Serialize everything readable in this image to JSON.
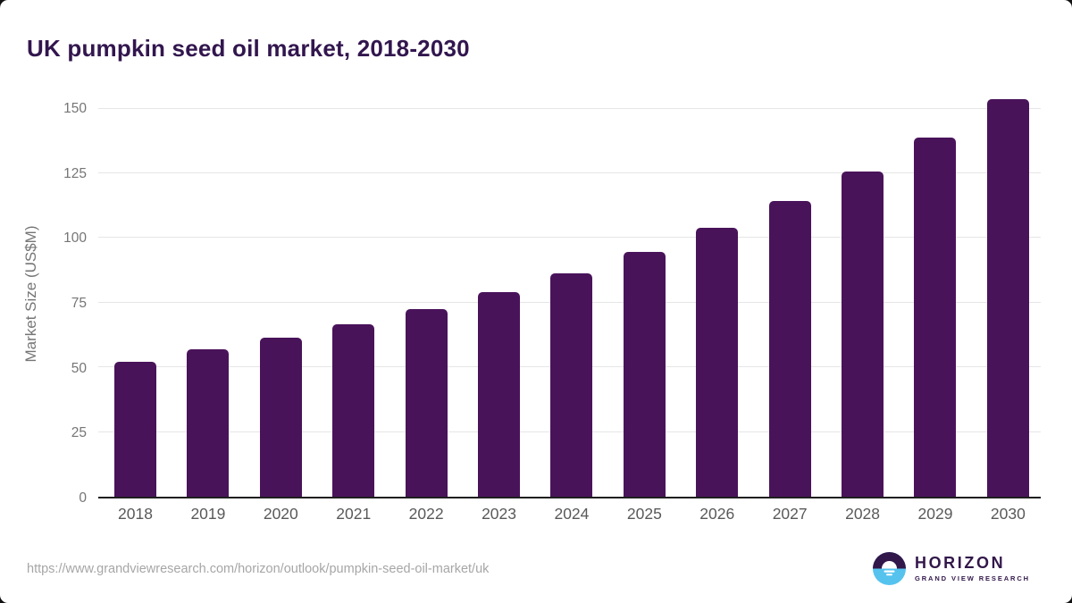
{
  "title": "UK pumpkin seed oil market, 2018-2030",
  "source_url": "https://www.grandviewresearch.com/horizon/outlook/pumpkin-seed-oil-market/uk",
  "logo": {
    "name": "HORIZON",
    "sub": "GRAND VIEW RESEARCH",
    "icon": "horizon-sunrise-icon",
    "purple": "#32174A",
    "blue": "#55C3EE"
  },
  "colors": {
    "bar": "#49135A",
    "title": "#32164E",
    "gridline": "#e6e6e6",
    "axis_line": "#1f1f1f",
    "y_tick_label": "#757575",
    "x_tick_label": "#595959",
    "url_text": "#a6a6a6",
    "background": "#ffffff"
  },
  "chart_data": {
    "type": "bar",
    "title": "UK pumpkin seed oil market, 2018-2030",
    "xlabel": "",
    "ylabel": "Market Size (US$M)",
    "categories": [
      "2018",
      "2019",
      "2020",
      "2021",
      "2022",
      "2023",
      "2024",
      "2025",
      "2026",
      "2027",
      "2028",
      "2029",
      "2030"
    ],
    "values": [
      52.3,
      56.9,
      61.6,
      66.7,
      72.6,
      79.2,
      86.5,
      94.7,
      103.9,
      114.2,
      125.7,
      138.9,
      153.8
    ],
    "ylim": [
      0,
      157.5
    ],
    "yticks": [
      0,
      25,
      50,
      75,
      100,
      125,
      150
    ],
    "grid": "horizontal",
    "legend": "none",
    "bar_color": "#49135A"
  }
}
